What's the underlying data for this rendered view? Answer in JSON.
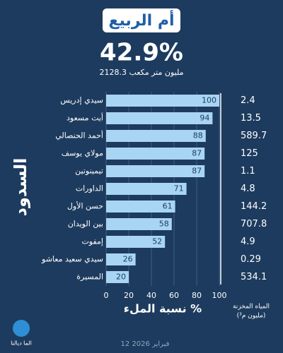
{
  "chart_data": {
    "type": "bar",
    "orientation": "horizontal",
    "title": "أم الربيع",
    "headline": "42.9%",
    "subtitle": "2128.3 مليون متر مكعب",
    "y_label": "السدود",
    "x_label": "نسبة الملء %",
    "categories": [
      "سيدي إدريس",
      "أيت مسعود",
      "أحمد الحنصالي",
      "مولاي يوسف",
      "تيمينوتين",
      "الداورات",
      "حسن الأول",
      "بين الويدان",
      "إمفوت",
      "سيدي سعيد معاشو",
      "المسيرة"
    ],
    "values": [
      100,
      94,
      88,
      87,
      87,
      71,
      61,
      58,
      52,
      26,
      20
    ],
    "color": "#a8d5f2",
    "xlim": [
      0,
      100
    ],
    "xticks": [
      0,
      20,
      40,
      60,
      80,
      100
    ],
    "grid": true,
    "storage": {
      "title": "المياه المخزنة",
      "unit": "(مليون م³)",
      "values": [
        2.4,
        13.5,
        589.7,
        125,
        1.1,
        4.8,
        144.2,
        707.8,
        4.9,
        0.29,
        534.1
      ]
    },
    "date": "12 فبراير 2026",
    "logo": "الما ديالنا"
  }
}
